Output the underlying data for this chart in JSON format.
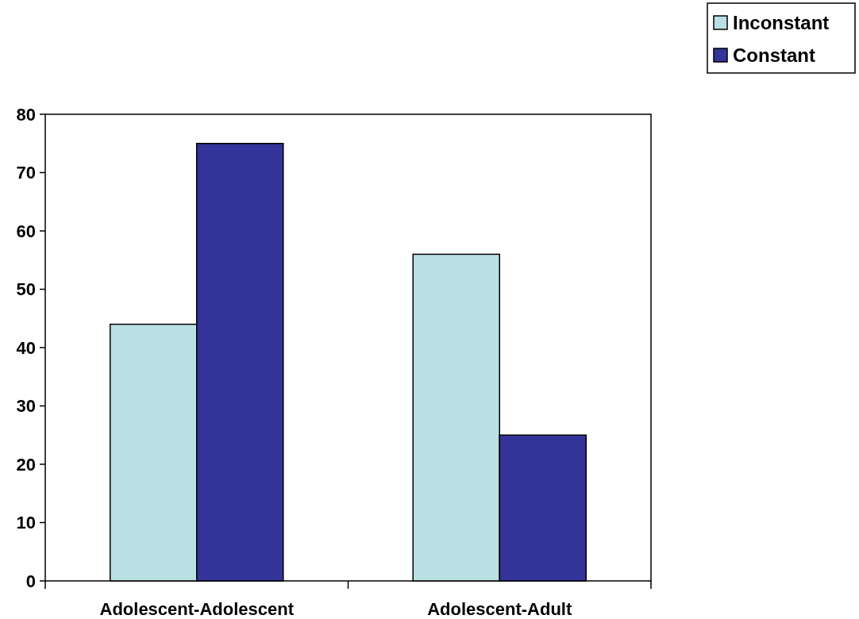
{
  "chart_data": {
    "type": "bar",
    "categories": [
      "Adolescent-Adolescent",
      "Adolescent-Adult"
    ],
    "series": [
      {
        "name": "Inconstant",
        "color": "#bbe0e3",
        "values": [
          44,
          56
        ]
      },
      {
        "name": "Constant",
        "color": "#333399",
        "values": [
          75,
          25
        ]
      }
    ],
    "ylim": [
      0,
      80
    ],
    "yticks": [
      0,
      10,
      20,
      30,
      40,
      50,
      60,
      70,
      80
    ],
    "grid": false,
    "legend": "top right"
  }
}
